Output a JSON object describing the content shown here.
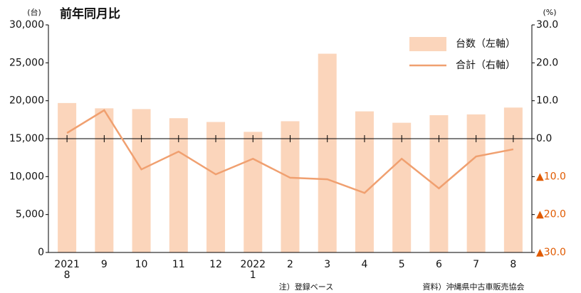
{
  "chart_data": {
    "type": "bar_line",
    "title": "前年同月比",
    "y_unit": "(台)",
    "y2_unit": "(%)",
    "categories": [
      "2021\n8",
      "9",
      "10",
      "11",
      "12",
      "2022\n1",
      "2",
      "3",
      "4",
      "5",
      "6",
      "7",
      "8"
    ],
    "series": [
      {
        "name": "台数（左軸）",
        "color": "#fbd5bb",
        "type": "bar",
        "axis": "y",
        "values": [
          19700,
          19000,
          18900,
          17700,
          17200,
          15900,
          17300,
          26200,
          18600,
          17100,
          18100,
          18200,
          19100
        ]
      },
      {
        "name": "合計（右軸）",
        "color": "#f0a070",
        "type": "line",
        "axis": "y2",
        "values": [
          1.5,
          7.5,
          -8.1,
          -3.4,
          -9.4,
          -5.3,
          -10.3,
          -10.7,
          -14.3,
          -5.3,
          -13.1,
          -4.7,
          -2.8
        ]
      }
    ],
    "ylim": [
      0,
      30000
    ],
    "yticks": [
      0,
      {
        "value": 5000,
        "label": "5,000"
      },
      {
        "value": 10000,
        "label": "10,000"
      },
      {
        "value": 15000,
        "label": "15,000"
      },
      {
        "value": 20000,
        "label": "20,000"
      },
      {
        "value": 25000,
        "label": "25,000"
      },
      {
        "value": 30000,
        "label": "30,000"
      }
    ],
    "y2lim": [
      -30,
      30
    ],
    "y2ticks": [
      {
        "value": -30,
        "label": "▲30.0"
      },
      {
        "value": -20,
        "label": "▲20.0"
      },
      {
        "value": -10,
        "label": "▲10.0"
      },
      {
        "value": 0,
        "label": "0.0"
      },
      {
        "value": 10,
        "label": "10.0"
      },
      {
        "value": 20,
        "label": "20.0"
      },
      {
        "value": 30,
        "label": "30.0"
      }
    ],
    "negative_label_color": "#e05a00",
    "legend": "upper right",
    "notes": [
      "注）登録ベース",
      "資料）沖縄県中古車販売協会"
    ]
  }
}
